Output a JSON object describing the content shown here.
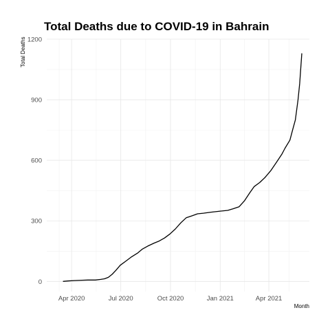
{
  "chart_data": {
    "type": "line",
    "title": "Total Deaths due to COVID-19 in Bahrain",
    "xlabel": "Month",
    "ylabel": "Total Deaths",
    "xlim": [
      "2020-02-15",
      "2021-06-15"
    ],
    "ylim": [
      -50,
      1200
    ],
    "x_ticks": [
      {
        "date": "2020-04-01",
        "label": "Apr 2020"
      },
      {
        "date": "2020-07-01",
        "label": "Jul 2020"
      },
      {
        "date": "2020-10-01",
        "label": "Oct 2020"
      },
      {
        "date": "2021-01-01",
        "label": "Jan 2021"
      },
      {
        "date": "2021-04-01",
        "label": "Apr 2021"
      }
    ],
    "y_ticks": [
      0,
      300,
      600,
      900,
      1200
    ],
    "grid": true,
    "series": [
      {
        "x": [
          "2020-03-16",
          "2020-03-25",
          "2020-04-05",
          "2020-04-20",
          "2020-05-01",
          "2020-05-15",
          "2020-05-25",
          "2020-06-01",
          "2020-06-08",
          "2020-06-15",
          "2020-06-22",
          "2020-06-30",
          "2020-07-10",
          "2020-07-20",
          "2020-08-01",
          "2020-08-10",
          "2020-08-20",
          "2020-09-01",
          "2020-09-10",
          "2020-09-20",
          "2020-09-30",
          "2020-10-10",
          "2020-10-20",
          "2020-10-30",
          "2020-11-10",
          "2020-11-20",
          "2020-12-01",
          "2020-12-15",
          "2021-01-01",
          "2021-01-15",
          "2021-01-25",
          "2021-02-05",
          "2021-02-15",
          "2021-02-25",
          "2021-03-05",
          "2021-03-15",
          "2021-03-25",
          "2021-04-05",
          "2021-04-15",
          "2021-04-25",
          "2021-05-01",
          "2021-05-10",
          "2021-05-15",
          "2021-05-20",
          "2021-05-25",
          "2021-05-28",
          "2021-06-01"
        ],
        "y": [
          0,
          2,
          4,
          6,
          7,
          7,
          10,
          13,
          20,
          35,
          55,
          80,
          100,
          120,
          140,
          160,
          175,
          190,
          200,
          215,
          235,
          260,
          290,
          315,
          325,
          335,
          338,
          343,
          348,
          352,
          360,
          370,
          400,
          440,
          470,
          490,
          515,
          550,
          590,
          630,
          660,
          700,
          750,
          800,
          900,
          980,
          1130
        ]
      }
    ]
  }
}
